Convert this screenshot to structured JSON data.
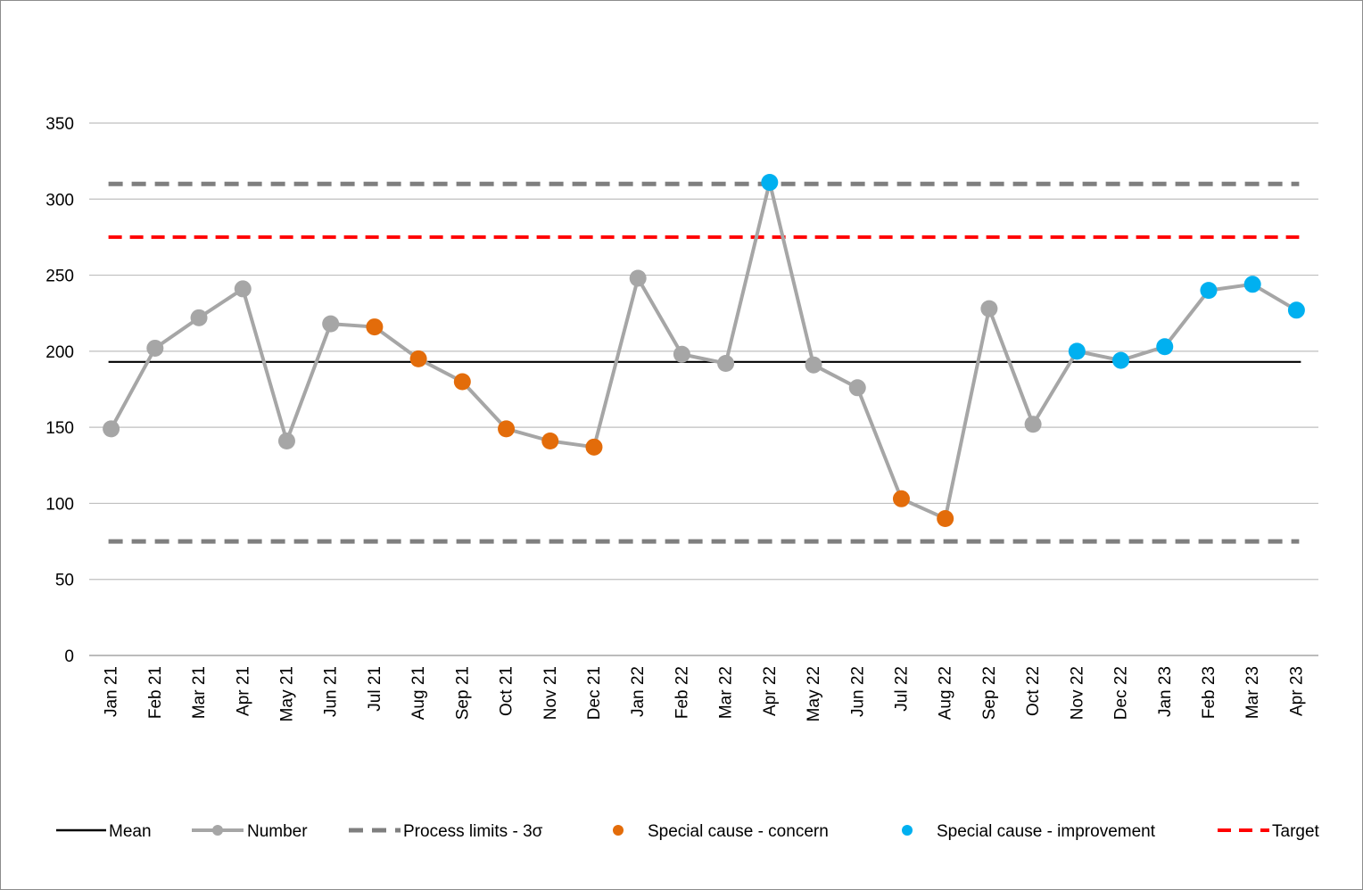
{
  "chart_data": {
    "type": "line",
    "title": "",
    "xlabel": "",
    "ylabel": "",
    "ylim": [
      0,
      350
    ],
    "yticks": [
      0,
      50,
      100,
      150,
      200,
      250,
      300,
      350
    ],
    "grid": true,
    "legend_position": "bottom",
    "categories": [
      "Jan 21",
      "Feb 21",
      "Mar 21",
      "Apr 21",
      "May 21",
      "Jun 21",
      "Jul 21",
      "Aug 21",
      "Sep 21",
      "Oct 21",
      "Nov 21",
      "Dec 21",
      "Jan 22",
      "Feb 22",
      "Mar 22",
      "Apr 22",
      "May 22",
      "Jun 22",
      "Jul 22",
      "Aug 22",
      "Sep 22",
      "Oct 22",
      "Nov 22",
      "Dec 22",
      "Jan 23",
      "Feb 23",
      "Mar 23",
      "Apr 23"
    ],
    "series": [
      {
        "name": "Number",
        "color": "#a6a6a6",
        "style": "line-marker",
        "values": [
          149,
          202,
          222,
          241,
          141,
          218,
          216,
          195,
          180,
          149,
          141,
          137,
          248,
          198,
          192,
          311,
          191,
          176,
          103,
          90,
          228,
          152,
          200,
          194,
          203,
          240,
          244,
          227
        ]
      },
      {
        "name": "Mean",
        "color": "#000000",
        "style": "solid",
        "value": 193
      },
      {
        "name": "Process limits - 3σ",
        "color": "#7f7f7f",
        "style": "dashed",
        "upper": 310,
        "lower": 75
      },
      {
        "name": "Special cause - concern",
        "color": "#e36c0a",
        "style": "marker",
        "categories": [
          "Jul 21",
          "Aug 21",
          "Sep 21",
          "Oct 21",
          "Nov 21",
          "Dec 21",
          "Jul 22",
          "Aug 22"
        ]
      },
      {
        "name": "Special cause  - improvement",
        "color": "#00b0f0",
        "style": "marker",
        "categories": [
          "Apr 22",
          "Nov 22",
          "Dec 22",
          "Jan 23",
          "Feb 23",
          "Mar 23",
          "Apr 23"
        ]
      },
      {
        "name": "Target",
        "color": "#ff0000",
        "style": "dashed",
        "value": 275
      }
    ]
  },
  "legend": {
    "mean": "Mean",
    "number": "Number",
    "limits": "Process limits - 3σ",
    "concern": "Special cause - concern",
    "improvement": "Special cause  - improvement",
    "target": "Target"
  }
}
